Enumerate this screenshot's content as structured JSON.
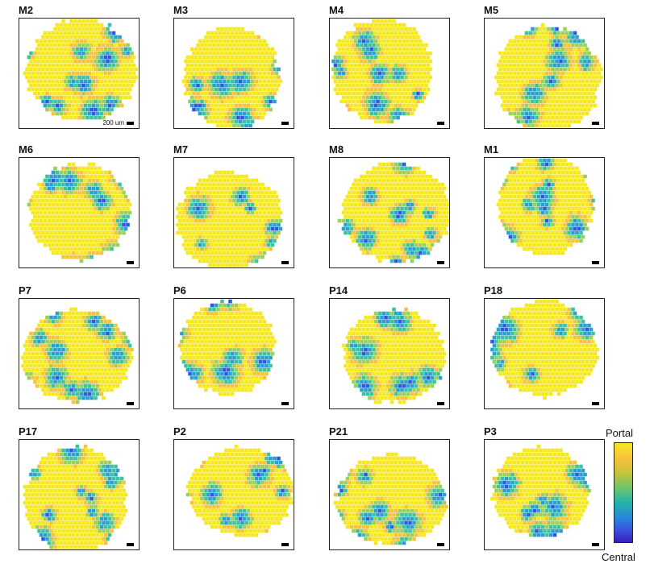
{
  "panels": [
    {
      "label": "M2",
      "seed": 11,
      "scale_label": "200 um"
    },
    {
      "label": "M3",
      "seed": 12
    },
    {
      "label": "M4",
      "seed": 13
    },
    {
      "label": "M5",
      "seed": 14
    },
    {
      "label": "M6",
      "seed": 21
    },
    {
      "label": "M7",
      "seed": 22
    },
    {
      "label": "M8",
      "seed": 23
    },
    {
      "label": "M1",
      "seed": 24
    },
    {
      "label": "P7",
      "seed": 31
    },
    {
      "label": "P6",
      "seed": 32
    },
    {
      "label": "P14",
      "seed": 33
    },
    {
      "label": "P18",
      "seed": 34
    },
    {
      "label": "P17",
      "seed": 41
    },
    {
      "label": "P2",
      "seed": 42
    },
    {
      "label": "P21",
      "seed": 43
    },
    {
      "label": "P3",
      "seed": 44
    }
  ],
  "colorbar": {
    "top_label": "Portal",
    "bottom_label": "Central"
  },
  "colors": {
    "portal": "#f5e81f",
    "mid": "#3ec3a0",
    "central": "#3620b8",
    "masked": "#9a9a9a"
  }
}
